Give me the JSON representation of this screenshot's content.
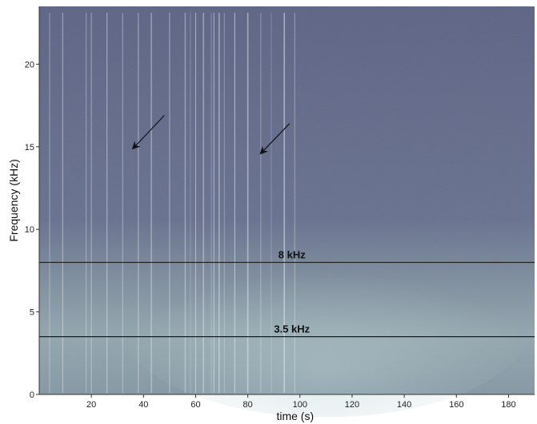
{
  "chart_data": {
    "type": "heatmap",
    "xlabel": "time (s)",
    "ylabel": "Frequency (kHz)",
    "xlim": [
      0,
      190
    ],
    "ylim": [
      0,
      23.5
    ],
    "x_ticks": [
      20,
      40,
      60,
      80,
      100,
      120,
      140,
      160,
      180
    ],
    "y_ticks": [
      0,
      5,
      10,
      15,
      20
    ],
    "reference_lines": [
      {
        "value": 8,
        "label": "8 kHz"
      },
      {
        "value": 3.5,
        "label": "3.5 kHz"
      }
    ],
    "arrows": [
      {
        "from": [
          48,
          16.9
        ],
        "to": [
          36,
          14.9
        ]
      },
      {
        "from": [
          96,
          16.4
        ],
        "to": [
          85,
          14.6
        ]
      }
    ],
    "vertical_streaks_s": [
      4,
      9,
      18,
      20,
      26,
      32,
      38,
      43,
      50,
      56,
      58,
      60,
      63,
      66,
      67,
      69,
      71,
      75,
      80,
      85,
      89,
      94,
      98
    ],
    "colors": {
      "background_high": "#5d6585",
      "background_low": "#8fa3ad",
      "streak": "#e8eef2",
      "reference_line": "#1c1c1c",
      "arrow": "#111111"
    }
  }
}
